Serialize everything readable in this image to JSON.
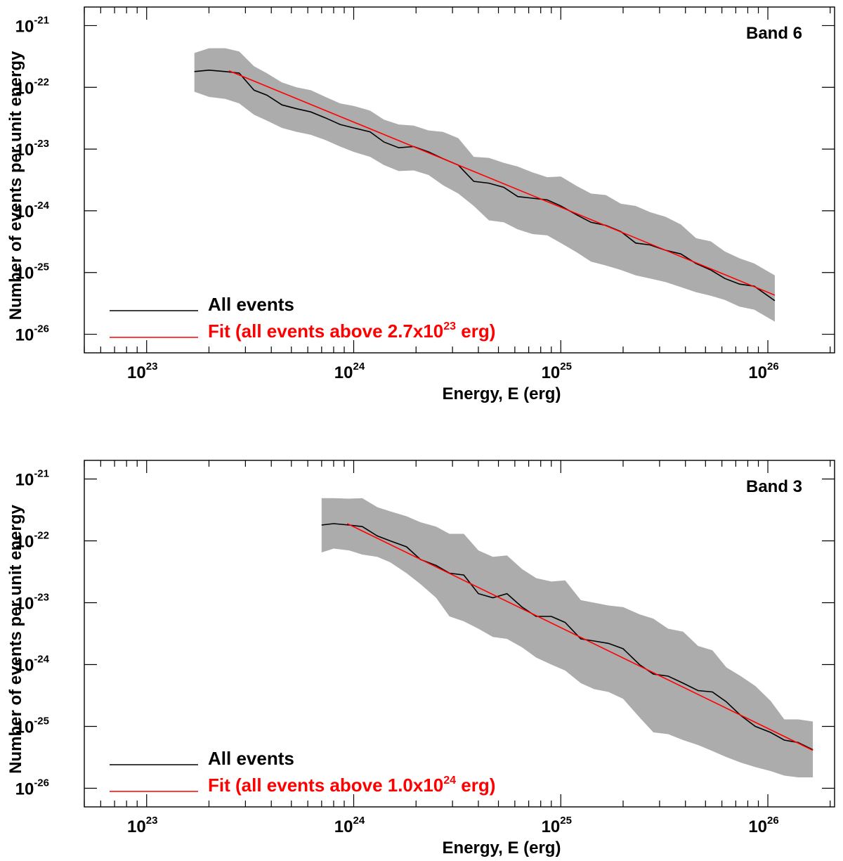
{
  "colors": {
    "band": "#acacac",
    "all_events_line": "#000000",
    "fit_line": "#ff0000",
    "axis": "#000000"
  },
  "chart_data": [
    {
      "type": "line",
      "label": "Band 6",
      "xlabel": "Energy, E (erg)",
      "ylabel": "Number of events per unit energy",
      "xscale": "log",
      "yscale": "log",
      "xlim": [
        5e+22,
        2.1e+26
      ],
      "ylim": [
        5e-27,
        2e-21
      ],
      "xticks_exp": [
        23,
        24,
        25,
        26
      ],
      "yticks_exp": [
        -21,
        -22,
        -23,
        -24,
        -25,
        -26
      ],
      "tick_base": "10",
      "legend": {
        "position": "bottom-left",
        "entries": [
          {
            "label": "All events",
            "color": "#000000"
          },
          {
            "label_prefix": "Fit (all events above 2.7x10",
            "label_exp": "23",
            "label_suffix": " erg)",
            "color": "#ff0000"
          }
        ]
      },
      "series": [
        {
          "name": "All events",
          "x": [
            1.7e+23,
            2e+23,
            2.4e+23,
            2.8e+23,
            3.3e+23,
            3.8e+23,
            4.5e+23,
            5.3e+23,
            6.2e+23,
            7.3e+23,
            8.6e+23,
            1e+24,
            1.2e+24,
            1.4e+24,
            1.65e+24,
            1.95e+24,
            2.3e+24,
            2.7e+24,
            3.2e+24,
            3.8e+24,
            4.5e+24,
            5.3e+24,
            6.2e+24,
            7.3e+24,
            8.6e+24,
            1e+25,
            1.2e+25,
            1.4e+25,
            1.65e+25,
            1.95e+25,
            2.3e+25,
            2.7e+25,
            3.2e+25,
            3.8e+25,
            4.5e+25,
            5.3e+25,
            6.2e+25,
            7.3e+25,
            8.6e+25,
            1.08e+26
          ],
          "y": [
            1.8e-22,
            1.9e-22,
            1.8e-22,
            1.7e-22,
            9e-23,
            7.5e-23,
            5.2e-23,
            4.5e-23,
            4e-23,
            3.2e-23,
            2.5e-23,
            2.2e-23,
            1.9e-23,
            1.3e-23,
            1.05e-23,
            1.1e-23,
            9e-24,
            7e-24,
            5.5e-24,
            3e-24,
            2.8e-24,
            2.4e-24,
            1.7e-24,
            1.6e-24,
            1.5e-24,
            1.2e-24,
            8.5e-25,
            6.5e-25,
            5.8e-25,
            4.6e-25,
            3e-25,
            2.8e-25,
            2.3e-25,
            2e-25,
            1.4e-25,
            1.1e-25,
            8e-26,
            6.5e-26,
            6e-26,
            3.5e-26
          ],
          "upper": [
            3.6e-22,
            4.3e-22,
            4.3e-22,
            3.8e-22,
            2.2e-22,
            1.7e-22,
            1.2e-22,
            1e-22,
            9e-23,
            7e-23,
            5.5e-23,
            5e-23,
            4.2e-23,
            3e-23,
            2.5e-23,
            2.4e-23,
            2e-23,
            1.9e-23,
            1.5e-23,
            7.5e-24,
            7.2e-24,
            6e-24,
            5.2e-24,
            4.2e-24,
            3.5e-24,
            3.6e-24,
            2.5e-24,
            1.9e-24,
            1.8e-24,
            1.3e-24,
            1.2e-24,
            9.5e-25,
            8e-25,
            6e-25,
            3.6e-25,
            3.2e-25,
            2.2e-25,
            1.7e-25,
            1.4e-25,
            9e-26
          ],
          "lower": [
            8.5e-23,
            7e-23,
            6.5e-23,
            5.5e-23,
            3.6e-23,
            2.9e-23,
            2.2e-23,
            1.9e-23,
            1.7e-23,
            1.4e-23,
            1.1e-23,
            9e-24,
            7.5e-24,
            5.5e-24,
            4.4e-24,
            4.5e-24,
            3.8e-24,
            2.6e-24,
            1.9e-24,
            1.2e-24,
            7e-25,
            6.5e-25,
            5e-25,
            4.2e-25,
            4e-25,
            3e-25,
            2.1e-25,
            1.5e-25,
            1.3e-25,
            1.1e-25,
            9e-26,
            8e-26,
            7e-26,
            5.8e-26,
            4.8e-26,
            4.2e-26,
            3.6e-26,
            2.8e-26,
            2.5e-26,
            1.6e-26
          ]
        },
        {
          "name": "Fit",
          "x": [
            2.5e+23,
            1.08e+26
          ],
          "y": [
            1.85e-22,
            4.3e-26
          ]
        }
      ]
    },
    {
      "type": "line",
      "label": "Band 3",
      "xlabel": "Energy, E (erg)",
      "ylabel": "Number of events per unit energy",
      "xscale": "log",
      "yscale": "log",
      "xlim": [
        5e+22,
        2.1e+26
      ],
      "ylim": [
        5e-27,
        2e-21
      ],
      "xticks_exp": [
        23,
        24,
        25,
        26
      ],
      "yticks_exp": [
        -21,
        -22,
        -23,
        -24,
        -25,
        -26
      ],
      "tick_base": "10",
      "legend": {
        "position": "bottom-left",
        "entries": [
          {
            "label": "All events",
            "color": "#000000"
          },
          {
            "label_prefix": "Fit (all events above 1.0x10",
            "label_exp": "24",
            "label_suffix": " erg)",
            "color": "#ff0000"
          }
        ]
      },
      "series": [
        {
          "name": "All events",
          "x": [
            7e+23,
            8e+23,
            9.5e+23,
            1.1e+24,
            1.3e+24,
            1.5e+24,
            1.8e+24,
            2.1e+24,
            2.5e+24,
            2.9e+24,
            3.4e+24,
            4e+24,
            4.7e+24,
            5.5e+24,
            6.5e+24,
            7.6e+24,
            9e+24,
            1.05e+25,
            1.25e+25,
            1.45e+25,
            1.7e+25,
            2e+25,
            2.4e+25,
            2.8e+25,
            3.3e+25,
            3.9e+25,
            4.6e+25,
            5.4e+25,
            6.3e+25,
            7.4e+25,
            8.7e+25,
            1.03e+26,
            1.2e+26,
            1.4e+26,
            1.65e+26
          ],
          "y": [
            1.8e-22,
            1.9e-22,
            1.8e-22,
            1.7e-22,
            1.2e-22,
            1e-22,
            8e-23,
            5e-23,
            4e-23,
            3e-23,
            2.8e-23,
            1.4e-23,
            1.2e-23,
            1.4e-23,
            8.5e-24,
            6e-24,
            6e-24,
            4.8e-24,
            2.6e-24,
            2.4e-24,
            2.2e-24,
            1.8e-24,
            1e-24,
            7e-25,
            6.5e-25,
            5e-25,
            3.8e-25,
            3.6e-25,
            2.5e-25,
            1.5e-25,
            1e-25,
            8e-26,
            6e-26,
            5.5e-26,
            4.2e-26
          ],
          "upper": [
            4.9e-22,
            4.9e-22,
            4.8e-22,
            4.9e-22,
            3.5e-22,
            3e-22,
            2.5e-22,
            2e-22,
            1.7e-22,
            1.3e-22,
            1.3e-22,
            7e-23,
            5.5e-23,
            5.8e-23,
            3.5e-23,
            2.5e-23,
            2.2e-23,
            2.3e-23,
            1.1e-23,
            1e-23,
            9e-24,
            8.5e-24,
            6.5e-24,
            5.5e-24,
            3.8e-24,
            3.4e-24,
            2e-24,
            1.7e-24,
            9e-25,
            6.5e-25,
            4.5e-25,
            2.6e-25,
            1.3e-25,
            1.3e-25,
            1.2e-25
          ],
          "lower": [
            6.5e-23,
            7.5e-23,
            7e-23,
            6e-23,
            5.5e-23,
            4.5e-23,
            3e-23,
            2e-23,
            1.2e-23,
            6e-24,
            5e-24,
            3.8e-24,
            2.8e-24,
            2.6e-24,
            1.9e-24,
            1.3e-24,
            1e-24,
            8e-25,
            5e-25,
            4e-25,
            3.6e-25,
            2.8e-25,
            1.4e-25,
            8e-26,
            7.5e-26,
            6e-26,
            5e-26,
            4e-26,
            3.2e-26,
            2.6e-26,
            2.2e-26,
            1.9e-26,
            1.6e-26,
            1.5e-26,
            1.5e-26
          ]
        },
        {
          "name": "Fit",
          "x": [
            9.3e+23,
            1.65e+26
          ],
          "y": [
            1.9e-22,
            4.1e-26
          ]
        }
      ]
    }
  ]
}
